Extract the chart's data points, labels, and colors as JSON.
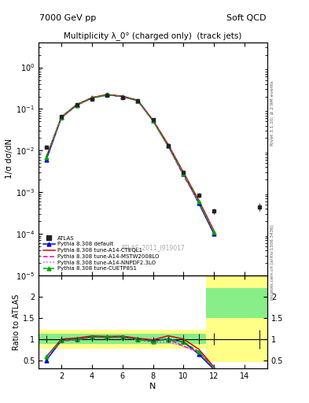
{
  "title_left": "7000 GeV pp",
  "title_right": "Soft QCD",
  "plot_title": "Multiplicity λ_0° (charged only)  (track jets)",
  "watermark": "ATLAS_2011_I919017",
  "right_label_top": "Rivet 3.1.10; ≥ 2.9M events",
  "arxiv_label": "mcplots.cern.ch [arXiv:1306.3436]",
  "ylabel_main": "1/σ dσ/dN",
  "ylabel_ratio": "Ratio to ATLAS",
  "xlabel": "N",
  "xlim": [
    0.5,
    15.5
  ],
  "ylim_main_log": [
    1e-05,
    4.0
  ],
  "ylim_ratio": [
    0.3,
    2.5
  ],
  "atlas_x": [
    1,
    2,
    3,
    4,
    5,
    6,
    7,
    8,
    9,
    10,
    11,
    12,
    15
  ],
  "atlas_y": [
    0.012,
    0.065,
    0.125,
    0.175,
    0.21,
    0.19,
    0.16,
    0.055,
    0.013,
    0.003,
    0.00085,
    0.00035,
    0.00045
  ],
  "atlas_yerr": [
    0.001,
    0.004,
    0.007,
    0.009,
    0.01,
    0.009,
    0.008,
    0.003,
    0.001,
    0.0003,
    0.0001,
    5e-05,
    0.0001
  ],
  "py_default_x": [
    1,
    2,
    3,
    4,
    5,
    6,
    7,
    8,
    9,
    10,
    11,
    12
  ],
  "py_default_y": [
    0.006,
    0.063,
    0.125,
    0.185,
    0.22,
    0.2,
    0.16,
    0.053,
    0.013,
    0.0028,
    0.00055,
    0.0001
  ],
  "py_cteql1_x": [
    1,
    2,
    3,
    4,
    5,
    6,
    7,
    8,
    9,
    10,
    11,
    12
  ],
  "py_cteql1_y": [
    0.007,
    0.065,
    0.128,
    0.188,
    0.223,
    0.203,
    0.163,
    0.054,
    0.014,
    0.003,
    0.00065,
    0.00012
  ],
  "py_mstw_x": [
    1,
    2,
    3,
    4,
    5,
    6,
    7,
    8,
    9,
    10,
    11,
    12
  ],
  "py_mstw_y": [
    0.007,
    0.062,
    0.123,
    0.183,
    0.218,
    0.198,
    0.158,
    0.052,
    0.013,
    0.0025,
    0.0006,
    0.00011
  ],
  "py_nnpdf_x": [
    1,
    2,
    3,
    4,
    5,
    6,
    7,
    8,
    9,
    10,
    11,
    12
  ],
  "py_nnpdf_y": [
    0.007,
    0.062,
    0.122,
    0.182,
    0.217,
    0.197,
    0.157,
    0.051,
    0.012,
    0.0025,
    0.00058,
    0.00011
  ],
  "py_cuetp_x": [
    1,
    2,
    3,
    4,
    5,
    6,
    7,
    8,
    9,
    10,
    11,
    12
  ],
  "py_cuetp_y": [
    0.007,
    0.063,
    0.124,
    0.184,
    0.219,
    0.199,
    0.159,
    0.052,
    0.013,
    0.0028,
    0.0006,
    0.00011
  ],
  "color_atlas": "#222222",
  "color_default": "#0000dd",
  "color_cteql1": "#dd0000",
  "color_mstw": "#ee00bb",
  "color_nnpdf": "#cc55cc",
  "color_cuetp": "#00aa00",
  "band_edges": [
    0.5,
    1.5,
    2.5,
    3.5,
    4.5,
    5.5,
    6.5,
    7.5,
    8.5,
    9.5,
    10.5,
    11.5,
    12.5,
    15.5
  ],
  "band_green_lo": [
    0.88,
    0.88,
    0.88,
    0.88,
    0.88,
    0.88,
    0.88,
    0.88,
    0.88,
    0.88,
    0.88,
    1.5,
    1.5,
    1.5
  ],
  "band_green_hi": [
    1.12,
    1.12,
    1.12,
    1.12,
    1.12,
    1.12,
    1.12,
    1.12,
    1.12,
    1.12,
    1.12,
    2.2,
    2.2,
    2.2
  ],
  "band_yellow_lo": [
    0.78,
    0.78,
    0.78,
    0.78,
    0.78,
    0.78,
    0.78,
    0.78,
    0.78,
    0.78,
    0.78,
    0.45,
    0.45,
    0.45
  ],
  "band_yellow_hi": [
    1.22,
    1.22,
    1.22,
    1.22,
    1.22,
    1.22,
    1.22,
    1.22,
    1.22,
    1.22,
    1.22,
    2.5,
    2.5,
    2.5
  ]
}
